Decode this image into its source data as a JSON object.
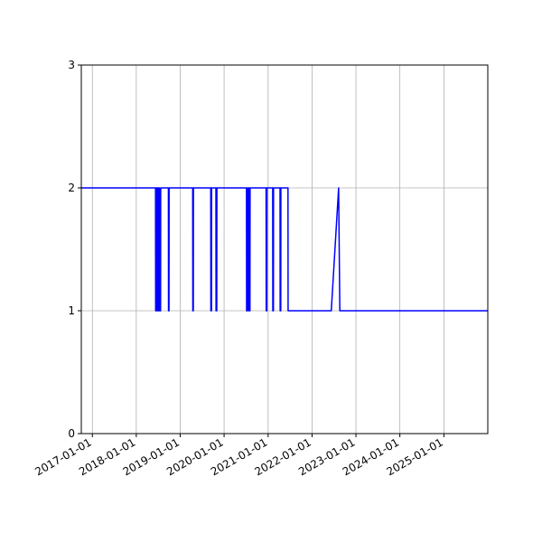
{
  "chart_data": {
    "type": "line",
    "title": "",
    "xlabel": "",
    "ylabel": "",
    "x_axis_type": "date",
    "xlim": [
      "2016-10-01",
      "2026-01-01"
    ],
    "ylim": [
      0,
      3
    ],
    "grid": true,
    "legend": "none",
    "x_ticks": [
      "2017-01-01",
      "2018-01-01",
      "2019-01-01",
      "2020-01-01",
      "2021-01-01",
      "2022-01-01",
      "2023-01-01",
      "2024-01-01",
      "2025-01-01"
    ],
    "y_ticks": [
      0,
      1,
      2,
      3
    ],
    "colors": {
      "series": "#0000ff",
      "grid": "#b0b0b0",
      "axis": "#000000"
    },
    "series": [
      {
        "name": "",
        "color": "#0000ff",
        "points": [
          [
            "2016-10-01",
            2
          ],
          [
            "2018-06-10",
            2
          ],
          [
            "2018-06-11",
            1
          ],
          [
            "2018-06-18",
            1
          ],
          [
            "2018-06-19",
            2
          ],
          [
            "2018-06-26",
            2
          ],
          [
            "2018-06-27",
            1
          ],
          [
            "2018-07-04",
            1
          ],
          [
            "2018-07-05",
            2
          ],
          [
            "2018-07-12",
            2
          ],
          [
            "2018-07-13",
            1
          ],
          [
            "2018-07-22",
            1
          ],
          [
            "2018-07-23",
            2
          ],
          [
            "2018-09-25",
            2
          ],
          [
            "2018-09-26",
            1
          ],
          [
            "2018-09-30",
            1
          ],
          [
            "2018-10-01",
            2
          ],
          [
            "2019-04-15",
            2
          ],
          [
            "2019-04-16",
            1
          ],
          [
            "2019-04-20",
            1
          ],
          [
            "2019-04-21",
            2
          ],
          [
            "2019-09-12",
            2
          ],
          [
            "2019-09-13",
            1
          ],
          [
            "2019-09-18",
            1
          ],
          [
            "2019-09-19",
            2
          ],
          [
            "2019-10-25",
            2
          ],
          [
            "2019-10-26",
            1
          ],
          [
            "2019-11-01",
            1
          ],
          [
            "2019-11-02",
            2
          ],
          [
            "2020-07-05",
            2
          ],
          [
            "2020-07-06",
            1
          ],
          [
            "2020-07-15",
            1
          ],
          [
            "2020-07-16",
            2
          ],
          [
            "2020-07-25",
            2
          ],
          [
            "2020-07-26",
            1
          ],
          [
            "2020-08-03",
            1
          ],
          [
            "2020-08-04",
            2
          ],
          [
            "2020-12-15",
            2
          ],
          [
            "2020-12-16",
            1
          ],
          [
            "2020-12-21",
            1
          ],
          [
            "2020-12-22",
            2
          ],
          [
            "2021-02-08",
            2
          ],
          [
            "2021-02-09",
            1
          ],
          [
            "2021-02-14",
            1
          ],
          [
            "2021-02-15",
            2
          ],
          [
            "2021-04-10",
            2
          ],
          [
            "2021-04-11",
            1
          ],
          [
            "2021-04-16",
            1
          ],
          [
            "2021-04-17",
            2
          ],
          [
            "2021-06-15",
            2
          ],
          [
            "2021-06-16",
            1
          ],
          [
            "2022-06-10",
            1
          ],
          [
            "2022-08-10",
            2
          ],
          [
            "2022-08-20",
            1
          ],
          [
            "2026-01-01",
            1
          ]
        ]
      }
    ]
  }
}
